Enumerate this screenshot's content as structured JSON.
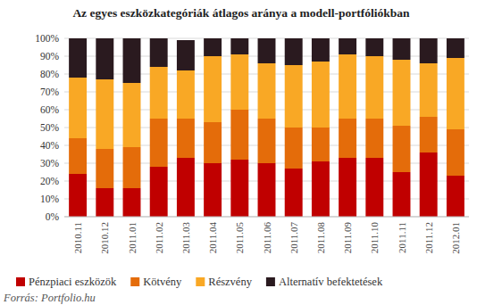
{
  "chart_data": {
    "type": "bar",
    "stacked": true,
    "grid": true,
    "legend": "bottom",
    "title": "Az egyes eszközkategóriák átlagos aránya a modell-portfóliókban",
    "source": "Forrás: Portfolio.hu",
    "categories": [
      "2010.11",
      "2010.12",
      "2011.01",
      "2011.02",
      "2011.03",
      "2011.04",
      "2011.05",
      "2011.06",
      "2011.07",
      "2011.08",
      "2011.09",
      "2011.10",
      "2011.11",
      "2011.12",
      "2012.01"
    ],
    "ylim": [
      0,
      100
    ],
    "yticks": [
      {
        "value": 0,
        "label": "0%"
      },
      {
        "value": 10,
        "label": "10%"
      },
      {
        "value": 20,
        "label": "20%"
      },
      {
        "value": 30,
        "label": "30%"
      },
      {
        "value": 40,
        "label": "40%"
      },
      {
        "value": 50,
        "label": "50%"
      },
      {
        "value": 60,
        "label": "60%"
      },
      {
        "value": 70,
        "label": "70%"
      },
      {
        "value": 80,
        "label": "80%"
      },
      {
        "value": 90,
        "label": "90%"
      },
      {
        "value": 100,
        "label": "100%"
      }
    ],
    "series": [
      {
        "name": "Pénzpiaci eszközök",
        "color": "#c00000",
        "values": [
          24,
          16,
          16,
          28,
          33,
          30,
          32,
          30,
          27,
          31,
          33,
          33,
          25,
          36,
          23
        ]
      },
      {
        "name": "Kötvény",
        "color": "#e46c0a",
        "values": [
          20,
          22,
          23,
          27,
          22,
          23,
          28,
          25,
          23,
          19,
          22,
          22,
          26,
          20,
          26
        ]
      },
      {
        "name": "Részvény",
        "color": "#f9a825",
        "values": [
          34,
          39,
          36,
          29,
          27,
          37,
          31,
          31,
          35,
          37,
          36,
          35,
          37,
          30,
          40
        ]
      },
      {
        "name": "Alternatív befektetések",
        "color": "#2a1a1f",
        "values": [
          22,
          23,
          25,
          16,
          17,
          10,
          9,
          14,
          15,
          13,
          9,
          10,
          12,
          14,
          11
        ]
      }
    ]
  }
}
